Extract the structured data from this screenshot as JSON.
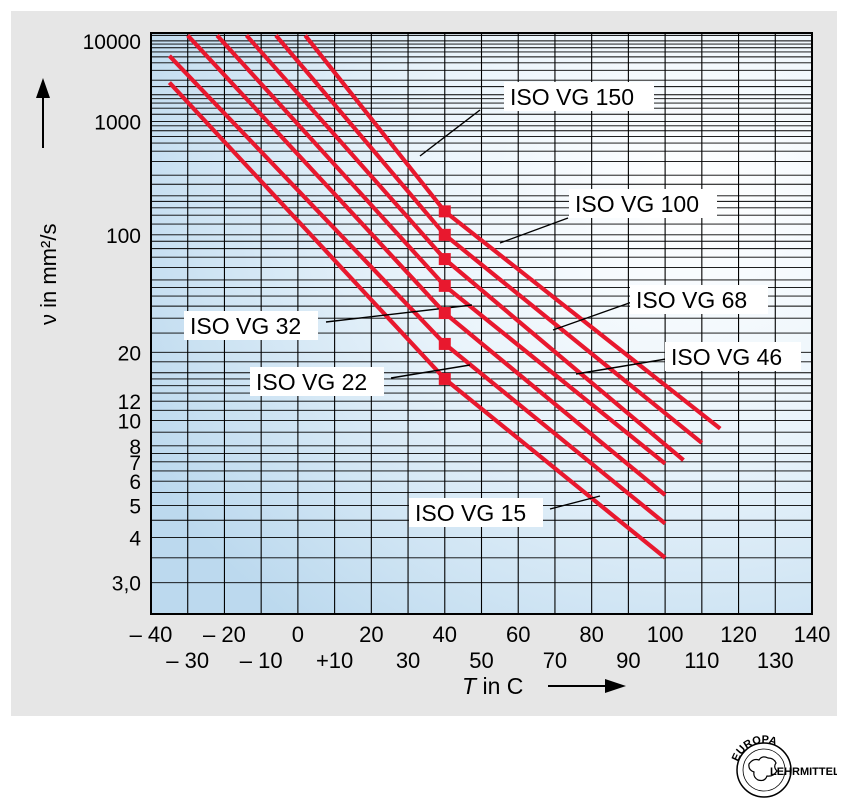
{
  "chart_data": {
    "type": "line",
    "title": "",
    "xlabel": "T in C",
    "ylabel": "ν in mm²/s",
    "x_scale": "linear",
    "y_scale": "ubbelohde (log-log viscosity grid)",
    "xlim": [
      -40,
      140
    ],
    "ylim": [
      2.5,
      13000
    ],
    "grid": true,
    "x_ticks_row1": [
      "– 40",
      "– 20",
      "0",
      "20",
      "40",
      "60",
      "80",
      "100",
      "120",
      "140"
    ],
    "x_ticks_row2": [
      "– 30",
      "– 10",
      "+10",
      "30",
      "50",
      "70",
      "90",
      "110",
      "130"
    ],
    "y_tick_labels": [
      {
        "value": 10000,
        "label": "10000"
      },
      {
        "value": 1000,
        "label": "1000"
      },
      {
        "value": 100,
        "label": "100"
      },
      {
        "value": 20,
        "label": "20"
      },
      {
        "value": 12,
        "label": "12"
      },
      {
        "value": 10,
        "label": "10"
      },
      {
        "value": 8,
        "label": "8"
      },
      {
        "value": 7,
        "label": "7"
      },
      {
        "value": 6,
        "label": "6"
      },
      {
        "value": 5,
        "label": "5"
      },
      {
        "value": 4,
        "label": "4"
      },
      {
        "value": 3,
        "label": "3,0"
      }
    ],
    "series": [
      {
        "name": "ISO VG 15",
        "points": [
          [
            -35,
            2800
          ],
          [
            40,
            15
          ],
          [
            100,
            3.5
          ]
        ]
      },
      {
        "name": "ISO VG 22",
        "points": [
          [
            -35,
            6200
          ],
          [
            40,
            22
          ],
          [
            100,
            4.4
          ]
        ]
      },
      {
        "name": "ISO VG 32",
        "points": [
          [
            -30,
            12000
          ],
          [
            40,
            32
          ],
          [
            100,
            5.4
          ]
        ]
      },
      {
        "name": "ISO VG 46",
        "points": [
          [
            -22,
            12000
          ],
          [
            40,
            46
          ],
          [
            100,
            6.9
          ]
        ]
      },
      {
        "name": "ISO VG 68",
        "points": [
          [
            -14,
            12000
          ],
          [
            40,
            68
          ],
          [
            105,
            7.1
          ]
        ]
      },
      {
        "name": "ISO VG 100",
        "points": [
          [
            -6,
            12000
          ],
          [
            40,
            100
          ],
          [
            110,
            8.2
          ]
        ]
      },
      {
        "name": "ISO VG 150",
        "points": [
          [
            2,
            12000
          ],
          [
            40,
            150
          ],
          [
            115,
            9.3
          ]
        ]
      }
    ],
    "markers": {
      "x": 40,
      "values": [
        15,
        22,
        32,
        46,
        68,
        100,
        150
      ]
    },
    "annotations": [
      {
        "text": "ISO VG 150",
        "series": "ISO VG 150"
      },
      {
        "text": "ISO VG 100",
        "series": "ISO VG 100"
      },
      {
        "text": "ISO VG 68",
        "series": "ISO VG 68"
      },
      {
        "text": "ISO VG 46",
        "series": "ISO VG 46"
      },
      {
        "text": "ISO VG 32",
        "series": "ISO VG 32"
      },
      {
        "text": "ISO VG 22",
        "series": "ISO VG 22"
      },
      {
        "text": "ISO VG 15",
        "series": "ISO VG 15"
      }
    ],
    "colors": {
      "line": "#e8182e",
      "marker": "#e8182e",
      "grid": "#000000",
      "panel": "#e6e6e6"
    }
  },
  "logo": {
    "text_top": "EUROPA",
    "text_right": "LEHRMITTEL"
  }
}
